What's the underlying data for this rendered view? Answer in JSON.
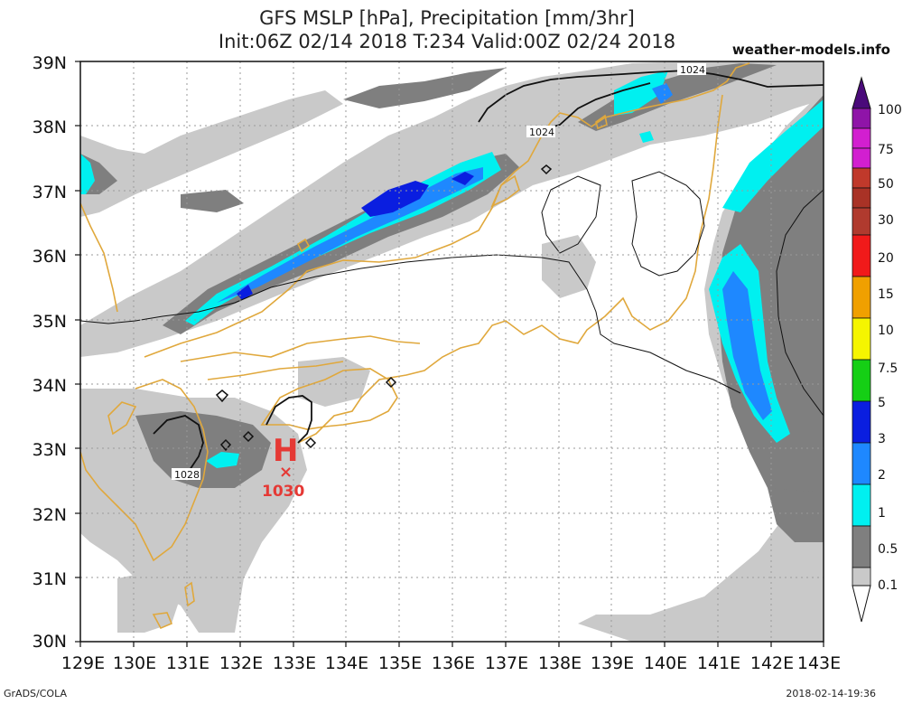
{
  "title": {
    "line1": "GFS MSLP [hPa], Precipitation [mm/3hr]",
    "line2": "Init:06Z 02/14 2018 T:234 Valid:00Z 02/24 2018"
  },
  "site": "weather-models.info",
  "footer": {
    "left": "GrADS/COLA",
    "right": "2018-02-14-19:36"
  },
  "map": {
    "lon_labels": [
      "129E",
      "130E",
      "131E",
      "132E",
      "133E",
      "134E",
      "135E",
      "136E",
      "137E",
      "138E",
      "139E",
      "140E",
      "141E",
      "142E",
      "143E"
    ],
    "lat_labels": [
      "39N",
      "38N",
      "37N",
      "36N",
      "35N",
      "34N",
      "33N",
      "32N",
      "31N",
      "30N"
    ]
  },
  "isobars": [
    {
      "label": "1024",
      "id": "iso-1024-north-top"
    },
    {
      "label": "1024",
      "id": "iso-1024-north-mid"
    },
    {
      "label": "1028",
      "id": "iso-1028-kyushu"
    }
  ],
  "pressure_center": {
    "symbol": "H",
    "value": "1030",
    "color": "#e53935"
  },
  "legend": {
    "labels": [
      "100",
      "75",
      "50",
      "30",
      "20",
      "15",
      "10",
      "7.5",
      "5",
      "3",
      "2",
      "1",
      "0.5",
      "0.1"
    ],
    "colors": [
      "#4a0a7a",
      "#8f14a8",
      "#d21fd0",
      "#b03a2e",
      "#a4372b",
      "#f11a1a",
      "#f0a000",
      "#f5f500",
      "#15cf15",
      "#0a1ee0",
      "#1e88ff",
      "#00f0f0",
      "#7f7f7f",
      "#c9c9c9"
    ]
  },
  "colors": {
    "coast": "#e0a83c",
    "precip_light": "#c9c9c9",
    "precip_mid": "#7f7f7f",
    "precip_cyan": "#00f0f0",
    "precip_blue": "#1e88ff",
    "precip_dark": "#0a1ee0"
  }
}
